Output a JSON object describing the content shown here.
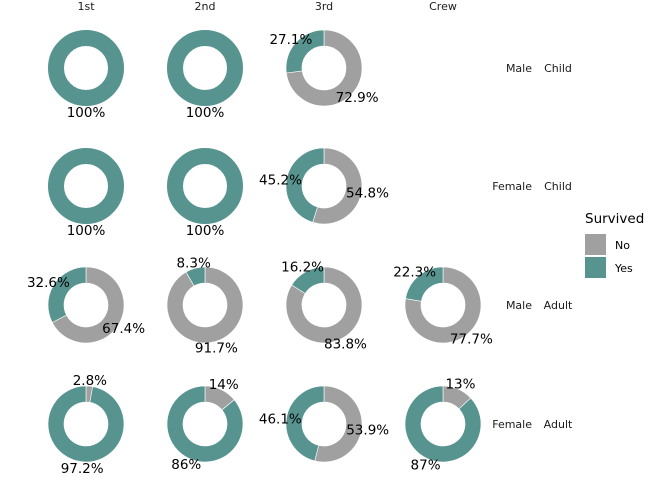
{
  "chart_data": {
    "type": "pie",
    "style": "donut",
    "columns": [
      "1st",
      "2nd",
      "3rd",
      "Crew"
    ],
    "rows": [
      {
        "sex": "Male",
        "age": "Child"
      },
      {
        "sex": "Female",
        "age": "Child"
      },
      {
        "sex": "Male",
        "age": "Adult"
      },
      {
        "sex": "Female",
        "age": "Adult"
      }
    ],
    "legend": {
      "title": "Survived",
      "items": [
        {
          "label": "No",
          "color": "#a0a0a0"
        },
        {
          "label": "Yes",
          "color": "#579490"
        }
      ]
    },
    "panels": [
      {
        "row": 0,
        "col": 0,
        "no": 0,
        "yes": 100,
        "labels": [
          {
            "series": "Yes",
            "text": "100%"
          }
        ]
      },
      {
        "row": 0,
        "col": 1,
        "no": 0,
        "yes": 100,
        "labels": [
          {
            "series": "Yes",
            "text": "100%"
          }
        ]
      },
      {
        "row": 0,
        "col": 2,
        "no": 72.9,
        "yes": 27.1,
        "labels": [
          {
            "series": "No",
            "text": "72.9%"
          },
          {
            "series": "Yes",
            "text": "27.1%"
          }
        ]
      },
      {
        "row": 1,
        "col": 0,
        "no": 0,
        "yes": 100,
        "labels": [
          {
            "series": "Yes",
            "text": "100%"
          }
        ]
      },
      {
        "row": 1,
        "col": 1,
        "no": 0,
        "yes": 100,
        "labels": [
          {
            "series": "Yes",
            "text": "100%"
          }
        ]
      },
      {
        "row": 1,
        "col": 2,
        "no": 54.8,
        "yes": 45.2,
        "labels": [
          {
            "series": "No",
            "text": "54.8%"
          },
          {
            "series": "Yes",
            "text": "45.2%"
          }
        ]
      },
      {
        "row": 2,
        "col": 0,
        "no": 67.4,
        "yes": 32.6,
        "labels": [
          {
            "series": "No",
            "text": "67.4%"
          },
          {
            "series": "Yes",
            "text": "32.6%"
          }
        ]
      },
      {
        "row": 2,
        "col": 1,
        "no": 91.7,
        "yes": 8.3,
        "labels": [
          {
            "series": "No",
            "text": "91.7%"
          },
          {
            "series": "Yes",
            "text": "8.3%"
          }
        ]
      },
      {
        "row": 2,
        "col": 2,
        "no": 83.8,
        "yes": 16.2,
        "labels": [
          {
            "series": "No",
            "text": "83.8%"
          },
          {
            "series": "Yes",
            "text": "16.2%"
          }
        ]
      },
      {
        "row": 2,
        "col": 3,
        "no": 77.7,
        "yes": 22.3,
        "labels": [
          {
            "series": "No",
            "text": "77.7%"
          },
          {
            "series": "Yes",
            "text": "22.3%"
          }
        ]
      },
      {
        "row": 3,
        "col": 0,
        "no": 2.8,
        "yes": 97.2,
        "labels": [
          {
            "series": "No",
            "text": "2.8%"
          },
          {
            "series": "Yes",
            "text": "97.2%"
          }
        ]
      },
      {
        "row": 3,
        "col": 1,
        "no": 14,
        "yes": 86,
        "labels": [
          {
            "series": "No",
            "text": "14%"
          },
          {
            "series": "Yes",
            "text": "86%"
          }
        ]
      },
      {
        "row": 3,
        "col": 2,
        "no": 53.9,
        "yes": 46.1,
        "labels": [
          {
            "series": "No",
            "text": "53.9%"
          },
          {
            "series": "Yes",
            "text": "46.1%"
          }
        ]
      },
      {
        "row": 3,
        "col": 3,
        "no": 13,
        "yes": 87,
        "labels": [
          {
            "series": "No",
            "text": "13%"
          },
          {
            "series": "Yes",
            "text": "87%"
          }
        ]
      }
    ]
  }
}
